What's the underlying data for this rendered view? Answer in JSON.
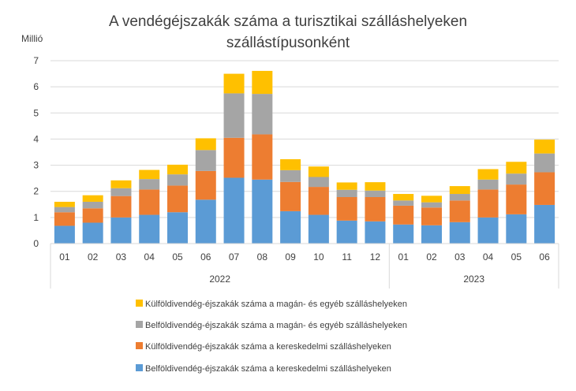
{
  "chart_data": {
    "type": "bar",
    "stacked": true,
    "title_line1": "A vendégéjszakák száma a turisztikai szálláshelyeken",
    "title_line2": "szállástípusonként",
    "ylabel": "Millió",
    "ylim": [
      0,
      7
    ],
    "yticks": [
      "0",
      "1",
      "2",
      "3",
      "4",
      "5",
      "6",
      "7"
    ],
    "grid": true,
    "legend_position": "bottom",
    "categories": [
      "01",
      "02",
      "03",
      "04",
      "05",
      "06",
      "07",
      "08",
      "09",
      "10",
      "11",
      "12",
      "01",
      "02",
      "03",
      "04",
      "05",
      "06"
    ],
    "groups": [
      {
        "label": "2022",
        "count": 12
      },
      {
        "label": "2023",
        "count": 6
      }
    ],
    "series": [
      {
        "name": "Belföldivendég-éjszakák száma a kereskedelmi szálláshelyeken",
        "color": "#5b9bd5",
        "values": [
          0.68,
          0.8,
          1.0,
          1.1,
          1.2,
          1.68,
          2.52,
          2.45,
          1.24,
          1.1,
          0.88,
          0.85,
          0.73,
          0.7,
          0.82,
          1.0,
          1.12,
          1.48
        ]
      },
      {
        "name": "Külföldivendég-éjszakák száma a kereskedelmi szálláshelyeken",
        "color": "#ed7d31",
        "values": [
          0.52,
          0.55,
          0.82,
          0.97,
          1.02,
          1.1,
          1.53,
          1.73,
          1.12,
          1.07,
          0.9,
          0.93,
          0.72,
          0.68,
          0.83,
          1.07,
          1.14,
          1.25
        ]
      },
      {
        "name": "Belföldivendég-éjszakák száma a magán- és egyéb szálláshelyeken",
        "color": "#a5a5a5",
        "values": [
          0.2,
          0.25,
          0.3,
          0.4,
          0.43,
          0.8,
          1.7,
          1.55,
          0.45,
          0.38,
          0.28,
          0.25,
          0.2,
          0.2,
          0.25,
          0.38,
          0.42,
          0.72
        ]
      },
      {
        "name": "Külföldivendég-éjszakák száma a magán- és egyéb szálláshelyeken",
        "color": "#ffc000",
        "values": [
          0.2,
          0.25,
          0.3,
          0.35,
          0.37,
          0.45,
          0.75,
          0.88,
          0.42,
          0.4,
          0.28,
          0.32,
          0.25,
          0.25,
          0.3,
          0.4,
          0.45,
          0.53
        ]
      }
    ]
  }
}
